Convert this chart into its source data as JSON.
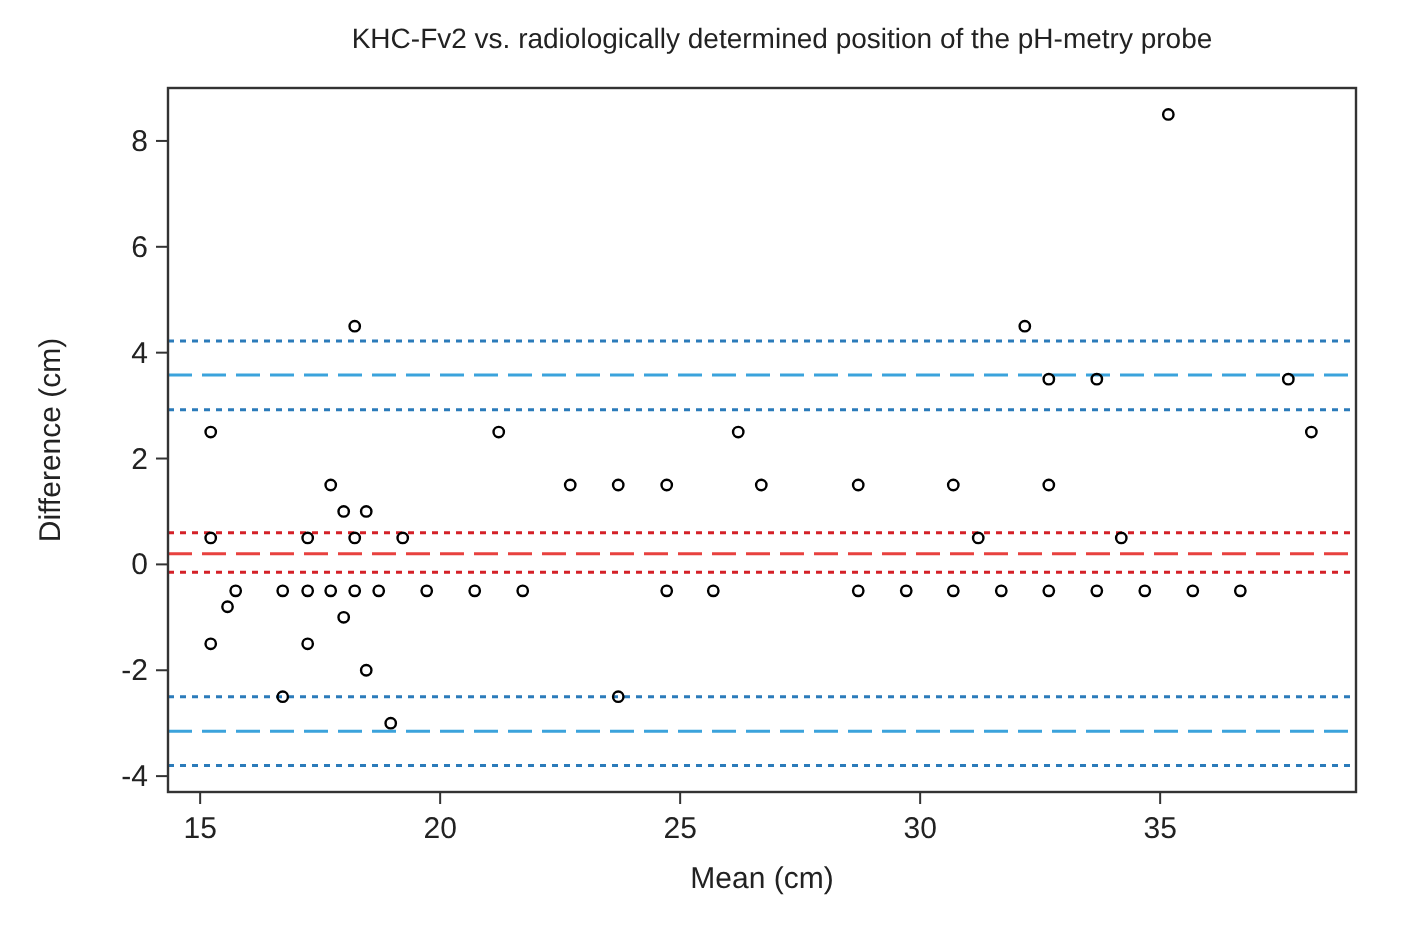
{
  "chart_data": {
    "type": "scatter",
    "title": "KHC-Fv2 vs. radiologically determined position of the pH-metry probe",
    "xlabel": "Mean (cm)",
    "ylabel": "Difference (cm)",
    "xlim": [
      14.33,
      39.08
    ],
    "ylim": [
      -4.3,
      9
    ],
    "xticks": [
      15,
      20,
      25,
      30,
      35
    ],
    "yticks": [
      -4,
      -2,
      0,
      2,
      4,
      6,
      8
    ],
    "grid": false,
    "marker": "circle",
    "series": [
      {
        "color": "#000000",
        "x": [
          15.22,
          15.22,
          15.22,
          15.57,
          15.74,
          16.72,
          16.72,
          17.24,
          17.24,
          17.24,
          17.72,
          17.72,
          17.99,
          17.99,
          18.22,
          18.22,
          18.22,
          18.46,
          18.46,
          18.72,
          18.97,
          19.22,
          19.72,
          20.72,
          21.22,
          21.72,
          22.71,
          23.71,
          23.71,
          24.72,
          24.72,
          25.69,
          26.21,
          26.69,
          28.71,
          28.71,
          29.71,
          30.69,
          30.69,
          31.21,
          31.69,
          32.18,
          32.68,
          32.68,
          32.68,
          33.68,
          33.68,
          34.19,
          34.68,
          35.17,
          35.68,
          36.67,
          37.67,
          38.15
        ],
        "values": [
          2.5,
          0.5,
          -1.5,
          -0.8,
          -0.5,
          -0.5,
          -2.5,
          0.5,
          -0.5,
          -1.5,
          1.5,
          -0.5,
          1,
          -1,
          4.5,
          0.5,
          -0.5,
          1,
          -2,
          -0.5,
          -3,
          0.5,
          -0.5,
          -0.5,
          2.5,
          -0.5,
          1.5,
          1.5,
          -2.5,
          1.5,
          -0.5,
          -0.5,
          2.5,
          1.5,
          1.5,
          -0.5,
          -0.5,
          1.5,
          -0.5,
          0.5,
          -0.5,
          4.5,
          3.5,
          1.5,
          -0.5,
          3.5,
          -0.5,
          0.5,
          -0.5,
          8.5,
          -0.5,
          -0.5,
          3.5,
          2.5
        ]
      }
    ],
    "ref_lines": [
      {
        "axis": "y",
        "value": 4.22,
        "color": "#2b7bba",
        "line_style": "dotted"
      },
      {
        "axis": "y",
        "value": 3.58,
        "color": "#3ba3dc",
        "line_style": "dashed"
      },
      {
        "axis": "y",
        "value": 2.92,
        "color": "#2b7bba",
        "line_style": "dotted"
      },
      {
        "axis": "y",
        "value": 0.6,
        "color": "#d42027",
        "line_style": "dotted"
      },
      {
        "axis": "y",
        "value": 0.2,
        "color": "#e8413f",
        "line_style": "dashed"
      },
      {
        "axis": "y",
        "value": -0.15,
        "color": "#d42027",
        "line_style": "dotted"
      },
      {
        "axis": "y",
        "value": -2.5,
        "color": "#2b7bba",
        "line_style": "dotted"
      },
      {
        "axis": "y",
        "value": -3.15,
        "color": "#3ba3dc",
        "line_style": "dashed"
      },
      {
        "axis": "y",
        "value": -3.8,
        "color": "#2b7bba",
        "line_style": "dotted"
      }
    ]
  }
}
